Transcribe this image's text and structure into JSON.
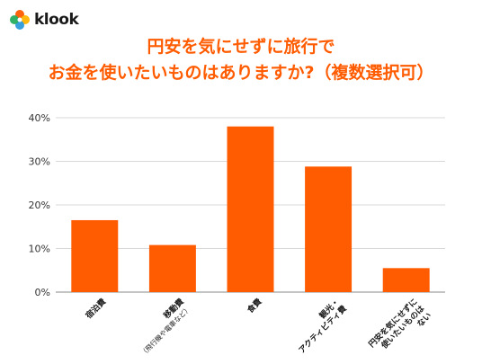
{
  "brand": {
    "name": "klook",
    "colors": {
      "accent": "#ff5b00",
      "text": "#1a1a1a"
    },
    "logo_icon": "klook-pinwheel-icon"
  },
  "chart_data": {
    "type": "bar",
    "title_lines": [
      "円安を気にせずに旅行で",
      "お金を使いたいものはありますか?（複数選択可）"
    ],
    "categories": [
      [
        "宿泊費"
      ],
      [
        "移動費",
        "（飛行機や電車など）"
      ],
      [
        "食費"
      ],
      [
        "観光・",
        "アクティビティ費"
      ],
      [
        "円安を気にせずに",
        "使いたいものは",
        "ない"
      ]
    ],
    "values": [
      16.5,
      10.8,
      38.0,
      28.8,
      5.5
    ],
    "y_ticks": [
      "0%",
      "10%",
      "20%",
      "30%",
      "40%"
    ],
    "y_tick_values": [
      0,
      10,
      20,
      30,
      40
    ],
    "ylim": [
      0,
      40
    ],
    "grid": true,
    "bar_color": "#ff5b00",
    "grid_color": "#d9d9d9"
  }
}
